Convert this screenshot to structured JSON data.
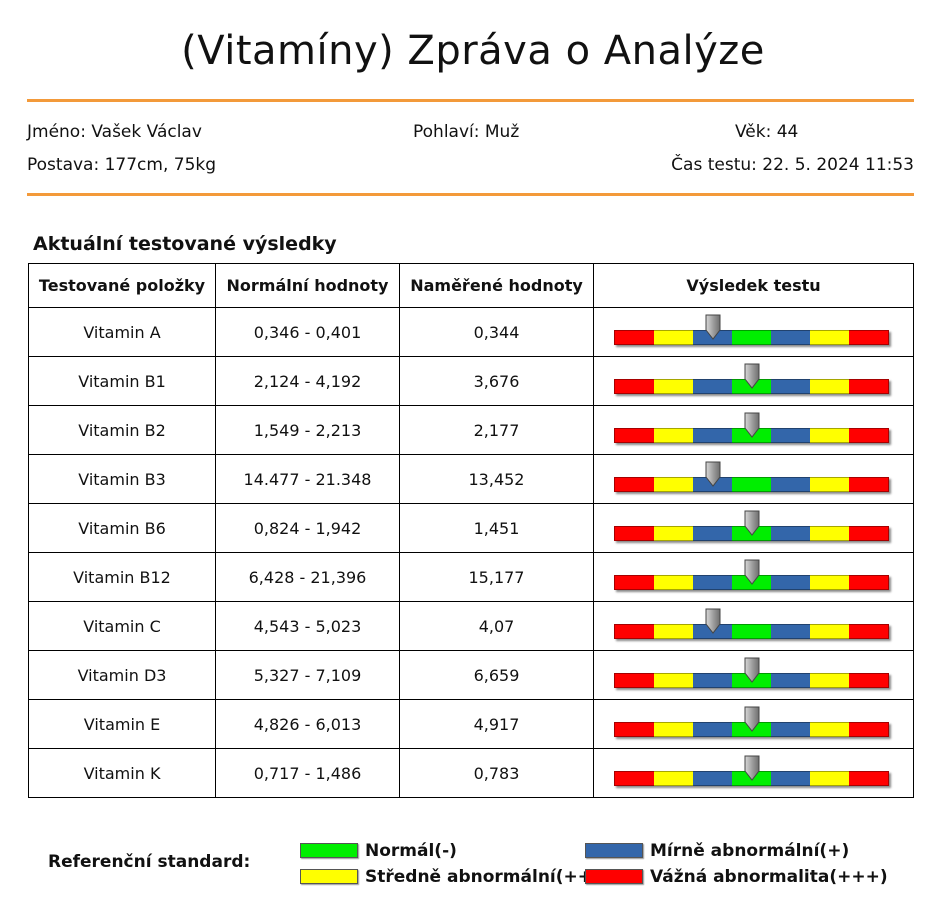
{
  "title": "(Vitamíny) Zpráva o Analýze",
  "patient": {
    "name": "Jméno: Vašek Václav",
    "gender": "Pohlaví: Muž",
    "age": "Věk: 44",
    "build": "Postava: 177cm, 75kg",
    "test_time": "Čas testu: 22. 5. 2024 11:53"
  },
  "section_title": "Aktuální testované výsledky",
  "table": {
    "headers": [
      "Testované položky",
      "Normální hodnoty",
      "Naměřené hodnoty",
      "Výsledek testu"
    ],
    "rows": [
      {
        "item": "Vitamin A",
        "normal": "0,346 - 0,401",
        "measured": "0,344",
        "level": 0.36
      },
      {
        "item": "Vitamin B1",
        "normal": "2,124 - 4,192",
        "measured": "3,676",
        "level": 0.5
      },
      {
        "item": "Vitamin B2",
        "normal": "1,549 - 2,213",
        "measured": "2,177",
        "level": 0.5
      },
      {
        "item": "Vitamin B3",
        "normal": "14.477 - 21.348",
        "measured": "13,452",
        "level": 0.36
      },
      {
        "item": "Vitamin B6",
        "normal": "0,824 - 1,942",
        "measured": "1,451",
        "level": 0.5
      },
      {
        "item": "Vitamin B12",
        "normal": "6,428 - 21,396",
        "measured": "15,177",
        "level": 0.5
      },
      {
        "item": "Vitamin C",
        "normal": "4,543 - 5,023",
        "measured": "4,07",
        "level": 0.36
      },
      {
        "item": "Vitamin D3",
        "normal": "5,327 - 7,109",
        "measured": "6,659",
        "level": 0.5
      },
      {
        "item": "Vitamin E",
        "normal": "4,826 - 6,013",
        "measured": "4,917",
        "level": 0.5
      },
      {
        "item": "Vitamin K",
        "normal": "0,717 - 1,486",
        "measured": "0,783",
        "level": 0.5
      }
    ]
  },
  "scale_colors": [
    "#ff0000",
    "#ffff00",
    "#3366aa",
    "#00ee00",
    "#3366aa",
    "#ffff00",
    "#ff0000"
  ],
  "legend": {
    "label": "Referenční standard:",
    "items": [
      {
        "label": "Normál(-)",
        "color": "#00ee00"
      },
      {
        "label": "Mírně abnormální(+)",
        "color": "#3366aa"
      },
      {
        "label": "Středně abnormální(++)",
        "color": "#ffff00"
      },
      {
        "label": "Vážná abnormalita(+++)",
        "color": "#ff0000"
      }
    ]
  },
  "colors": {
    "accent_rule": "#f39a3a"
  }
}
